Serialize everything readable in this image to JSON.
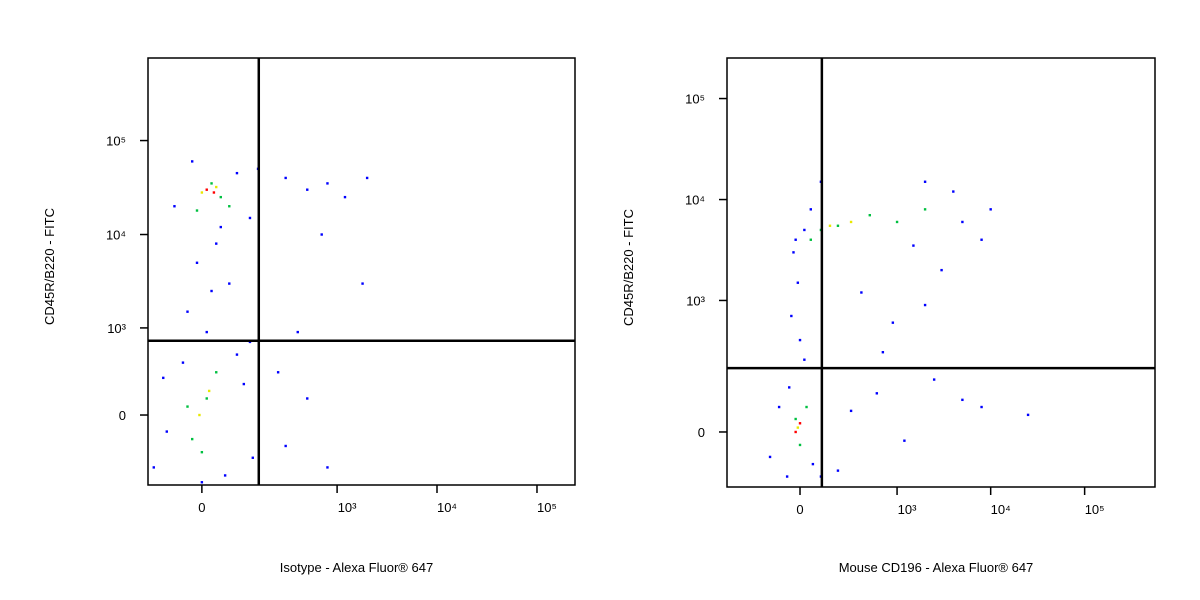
{
  "chart_data": [
    {
      "type": "scatter",
      "xlabel": "Isotype - Alexa Fluor® 647",
      "ylabel": "CD45R/B220 - FITC",
      "xscale": "logicle",
      "yscale": "logicle",
      "xlim": [
        -141,
        240000
      ],
      "ylim": [
        -645,
        756000
      ],
      "xticks": [
        0,
        {
          "value": 1000,
          "label": "10³"
        },
        {
          "value": 10000,
          "label": "10⁴"
        },
        {
          "value": 100000,
          "label": "10⁵"
        }
      ],
      "yticks": [
        0,
        {
          "value": 1000,
          "label": "10³"
        },
        {
          "value": 10000,
          "label": "10⁴"
        },
        {
          "value": 100000,
          "label": "10⁵"
        }
      ],
      "gates": {
        "x": 153,
        "y": 720
      },
      "series": [
        {
          "color": "#0000ff",
          "x": [
            -60,
            80,
            120,
            -20,
            40,
            150,
            300,
            500,
            800,
            1200,
            2000,
            700,
            -10,
            20,
            -30,
            10,
            60,
            -40,
            100,
            -80,
            130,
            -120,
            50,
            80,
            300,
            500,
            250,
            1800,
            400,
            -90,
            120,
            0,
            30,
            800
          ],
          "y": [
            20000,
            45000,
            15000,
            60000,
            12000,
            50000,
            40000,
            30000,
            35000,
            25000,
            40000,
            10000,
            5000,
            2500,
            1500,
            900,
            3000,
            400,
            200,
            -100,
            -300,
            -400,
            -500,
            500,
            -200,
            100,
            300,
            3000,
            900,
            250,
            700,
            -600,
            8000,
            -400
          ]
        },
        {
          "color": "#00c040",
          "x": [
            -10,
            40,
            20,
            60,
            -20,
            10,
            30,
            -30,
            0
          ],
          "y": [
            18000,
            25000,
            35000,
            20000,
            -150,
            100,
            300,
            50,
            -250
          ]
        },
        {
          "color": "#e8e800",
          "x": [
            0,
            30,
            -5,
            15
          ],
          "y": [
            28000,
            32000,
            0,
            150
          ]
        },
        {
          "color": "#ff0000",
          "x": [
            10,
            25
          ],
          "y": [
            30000,
            28000
          ]
        }
      ]
    },
    {
      "type": "scatter",
      "xlabel": "Mouse CD196 - Alexa Fluor® 647",
      "ylabel": "CD45R/B220 - FITC",
      "xscale": "logicle",
      "yscale": "logicle",
      "xlim": [
        -544,
        561000
      ],
      "ylim": [
        -161,
        252000
      ],
      "xticks": [
        0,
        {
          "value": 1000,
          "label": "10³"
        },
        {
          "value": 10000,
          "label": "10⁴"
        },
        {
          "value": 100000,
          "label": "10⁵"
        }
      ],
      "yticks": [
        0,
        {
          "value": 1000,
          "label": "10³"
        },
        {
          "value": 10000,
          "label": "10⁴"
        },
        {
          "value": 100000,
          "label": "10⁵"
        }
      ],
      "gates": {
        "x": 105,
        "y": 203
      },
      "series": [
        {
          "color": "#0000ff",
          "x": [
            -30,
            -10,
            -40,
            0,
            20,
            -50,
            60,
            100,
            300,
            600,
            1200,
            2500,
            5000,
            8000,
            25000,
            400,
            900,
            2000,
            3000,
            10000,
            8000,
            4000,
            2000,
            100,
            50,
            -20,
            20,
            5000,
            1500,
            -150,
            -60,
            200,
            700,
            -100
          ],
          "y": [
            3000,
            1500,
            700,
            400,
            250,
            120,
            -80,
            -120,
            50,
            100,
            -20,
            150,
            80,
            60,
            40,
            1200,
            600,
            900,
            2000,
            8000,
            4000,
            12000,
            15000,
            15000,
            8000,
            4000,
            5000,
            6000,
            3500,
            -60,
            -120,
            -100,
            300,
            60
          ]
        },
        {
          "color": "#00c040",
          "x": [
            100,
            200,
            500,
            1000,
            2000,
            50,
            -20,
            0,
            30
          ],
          "y": [
            5000,
            5500,
            7000,
            6000,
            8000,
            4000,
            30,
            -30,
            60
          ]
        },
        {
          "color": "#e8e800",
          "x": [
            300,
            150,
            -10
          ],
          "y": [
            6000,
            5500,
            10
          ]
        },
        {
          "color": "#ff0000",
          "x": [
            -20,
            0
          ],
          "y": [
            0,
            20
          ]
        }
      ]
    }
  ]
}
